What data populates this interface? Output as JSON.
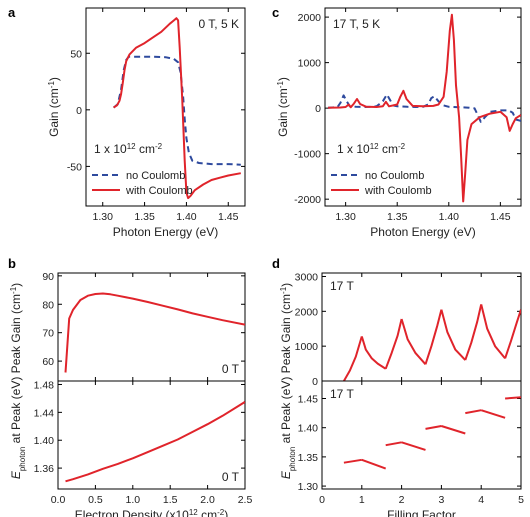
{
  "chart_data": [
    {
      "panel": "a",
      "type": "line",
      "xlabel": "Photon Energy (eV)",
      "ylabel": "Gain (cm",
      "ylabel_sup": "-1",
      "ylabel_close": ")",
      "xlim": [
        1.28,
        1.47
      ],
      "ylim": [
        -85,
        90
      ],
      "xticks": [
        "1.30",
        "1.35",
        "1.40",
        "1.45"
      ],
      "yticks": [
        "-50",
        "0",
        "50"
      ],
      "annotation": "0 T, 5 K",
      "density_main": "1 x 10",
      "density_sup": "12",
      "density_unit": " cm",
      "density_unit_sup": "-2",
      "legend": [
        "no  Coulomb",
        "with  Coulomb"
      ],
      "series": [
        {
          "name": "no Coulomb",
          "color": "#2e4a9e",
          "style": "dashed",
          "x": [
            1.313,
            1.318,
            1.322,
            1.325,
            1.328,
            1.331,
            1.336,
            1.345,
            1.36,
            1.375,
            1.385,
            1.39,
            1.393,
            1.396,
            1.398,
            1.4,
            1.403,
            1.407,
            1.415,
            1.43,
            1.45,
            1.465
          ],
          "y": [
            2,
            5,
            18,
            35,
            44,
            47,
            47,
            47,
            47,
            46.5,
            45,
            42,
            33,
            12,
            -8,
            -25,
            -38,
            -45,
            -47,
            -48,
            -48,
            -48.5
          ]
        },
        {
          "name": "with Coulomb",
          "color": "#e0242b",
          "style": "solid",
          "x": [
            1.313,
            1.317,
            1.32,
            1.322,
            1.324,
            1.326,
            1.328,
            1.332,
            1.34,
            1.35,
            1.36,
            1.37,
            1.38,
            1.385,
            1.388,
            1.39,
            1.392,
            1.395,
            1.398,
            1.4,
            1.402,
            1.405,
            1.41,
            1.42,
            1.43,
            1.44,
            1.45,
            1.465
          ],
          "y": [
            2,
            4,
            8,
            14,
            24,
            35,
            43,
            49,
            55,
            59,
            64,
            69,
            76,
            79,
            81,
            79,
            55,
            10,
            -45,
            -73,
            -78,
            -76,
            -71,
            -66,
            -62,
            -60,
            -58,
            -56
          ]
        }
      ]
    },
    {
      "panel": "c",
      "type": "line",
      "xlabel": "Photon Energy (eV)",
      "ylabel": "Gain (cm",
      "ylabel_sup": "-1",
      "ylabel_close": ")",
      "xlim": [
        1.28,
        1.47
      ],
      "ylim": [
        -2150,
        2200
      ],
      "xticks": [
        "1.30",
        "1.35",
        "1.40",
        "1.45"
      ],
      "yticks": [
        "-2000",
        "-1000",
        "0",
        "1000",
        "2000"
      ],
      "annotation": "17 T, 5 K",
      "density_main": "1 x 10",
      "density_sup": "12",
      "density_unit": " cm",
      "density_unit_sup": "-2",
      "legend": [
        "no  Coulomb",
        "with  Coulomb"
      ],
      "series": [
        {
          "name": "no Coulomb",
          "color": "#2e4a9e",
          "style": "dashed",
          "x": [
            1.283,
            1.292,
            1.295,
            1.298,
            1.301,
            1.304,
            1.31,
            1.318,
            1.324,
            1.33,
            1.336,
            1.34,
            1.343,
            1.346,
            1.35,
            1.36,
            1.368,
            1.375,
            1.38,
            1.383,
            1.386,
            1.39,
            1.395,
            1.4,
            1.41,
            1.42,
            1.425,
            1.428,
            1.431,
            1.435,
            1.44,
            1.45,
            1.458,
            1.462,
            1.465,
            1.47
          ],
          "y": [
            10,
            20,
            120,
            280,
            150,
            40,
            30,
            25,
            30,
            40,
            150,
            300,
            180,
            60,
            40,
            30,
            25,
            30,
            80,
            220,
            260,
            150,
            60,
            30,
            20,
            10,
            -5,
            -150,
            -300,
            -200,
            -80,
            -50,
            -50,
            -100,
            -250,
            -280
          ]
        },
        {
          "name": "with Coulomb",
          "color": "#e0242b",
          "style": "solid",
          "x": [
            1.283,
            1.295,
            1.3,
            1.303,
            1.305,
            1.308,
            1.311,
            1.314,
            1.32,
            1.33,
            1.336,
            1.339,
            1.342,
            1.35,
            1.353,
            1.356,
            1.359,
            1.365,
            1.375,
            1.385,
            1.39,
            1.395,
            1.398,
            1.401,
            1.403,
            1.405,
            1.407,
            1.41,
            1.412,
            1.414,
            1.416,
            1.418,
            1.422,
            1.43,
            1.44,
            1.45,
            1.456,
            1.459,
            1.462,
            1.465,
            1.47
          ],
          "y": [
            10,
            15,
            25,
            80,
            20,
            100,
            200,
            90,
            30,
            25,
            40,
            140,
            40,
            80,
            250,
            380,
            200,
            50,
            40,
            50,
            80,
            250,
            800,
            1700,
            2050,
            1500,
            500,
            -200,
            -1100,
            -2050,
            -1400,
            -700,
            -350,
            -200,
            -120,
            -80,
            -200,
            -500,
            -350,
            -220,
            -150
          ]
        }
      ]
    },
    {
      "panel": "b-top",
      "type": "line",
      "ylabel": "Peak Gain (cm",
      "ylabel_sup": "-1",
      "ylabel_close": ")",
      "xlim": [
        0,
        2.5
      ],
      "ylim": [
        53,
        91
      ],
      "yticks": [
        "60",
        "70",
        "80",
        "90"
      ],
      "annotation": "0 T",
      "series": [
        {
          "color": "#e0242b",
          "x": [
            0.1,
            0.15,
            0.2,
            0.3,
            0.4,
            0.5,
            0.6,
            0.7,
            0.8,
            1.0,
            1.2,
            1.4,
            1.6,
            1.8,
            2.0,
            2.2,
            2.5
          ],
          "y": [
            56,
            75,
            78,
            81.5,
            83,
            83.6,
            83.8,
            83.5,
            83,
            82,
            80.8,
            79.5,
            78.2,
            76.8,
            75.6,
            74.4,
            72.8
          ]
        }
      ]
    },
    {
      "panel": "b-bottom",
      "type": "line",
      "xlabel": "Electron Density (x10",
      "xlabel_sup": "12",
      "xlabel_unit": " cm",
      "xlabel_unit_sup": "-2",
      "xlabel_close": ")",
      "ylabel": "at Peak (eV)",
      "ylabel_main": "E",
      "ylabel_sub": "photon",
      "xlim": [
        0,
        2.5
      ],
      "ylim": [
        1.33,
        1.485
      ],
      "xticks": [
        "0.0",
        "0.5",
        "1.0",
        "1.5",
        "2.0",
        "2.5"
      ],
      "yticks": [
        "1.36",
        "1.40",
        "1.44",
        "1.48"
      ],
      "annotation": "0 T",
      "series": [
        {
          "color": "#e0242b",
          "x": [
            0.1,
            0.2,
            0.4,
            0.6,
            0.8,
            1.0,
            1.2,
            1.4,
            1.6,
            1.8,
            2.0,
            2.2,
            2.5
          ],
          "y": [
            1.341,
            1.344,
            1.351,
            1.359,
            1.366,
            1.374,
            1.383,
            1.392,
            1.401,
            1.412,
            1.423,
            1.435,
            1.455
          ]
        }
      ]
    },
    {
      "panel": "d-top",
      "type": "line",
      "ylabel": "Peak Gain (cm",
      "ylabel_sup": "-1",
      "ylabel_close": ")",
      "xlim": [
        0,
        5
      ],
      "ylim": [
        0,
        3100
      ],
      "yticks": [
        "0",
        "1000",
        "2000",
        "3000"
      ],
      "annotation": "17 T",
      "series": [
        {
          "color": "#e0242b",
          "segments": [
            {
              "x": [
                0.55,
                0.7,
                0.85,
                1.0
              ],
              "y": [
                0,
                300,
                700,
                1280
              ]
            },
            {
              "x": [
                1.0,
                1.1,
                1.25,
                1.4,
                1.6
              ],
              "y": [
                1280,
                900,
                650,
                500,
                350
              ]
            },
            {
              "x": [
                1.6,
                1.75,
                1.9,
                2.0
              ],
              "y": [
                350,
                800,
                1300,
                1780
              ]
            },
            {
              "x": [
                2.0,
                2.15,
                2.35,
                2.6
              ],
              "y": [
                1780,
                1200,
                800,
                480
              ]
            },
            {
              "x": [
                2.6,
                2.75,
                2.9,
                3.0
              ],
              "y": [
                480,
                1000,
                1600,
                2050
              ]
            },
            {
              "x": [
                3.0,
                3.15,
                3.35,
                3.6
              ],
              "y": [
                2050,
                1400,
                900,
                600
              ]
            },
            {
              "x": [
                3.6,
                3.75,
                3.9,
                4.0
              ],
              "y": [
                600,
                1100,
                1700,
                2200
              ]
            },
            {
              "x": [
                4.0,
                4.15,
                4.35,
                4.6
              ],
              "y": [
                2200,
                1500,
                1000,
                650
              ]
            },
            {
              "x": [
                4.6,
                4.75,
                4.9,
                5.0
              ],
              "y": [
                650,
                1150,
                1700,
                2050
              ]
            }
          ]
        }
      ]
    },
    {
      "panel": "d-bottom",
      "type": "line",
      "xlabel": "Filling Factor",
      "ylabel": "at Peak (eV)",
      "ylabel_main": "E",
      "ylabel_sub": "photon",
      "xlim": [
        0,
        5
      ],
      "ylim": [
        1.295,
        1.48
      ],
      "xticks": [
        "0",
        "1",
        "2",
        "3",
        "4",
        "5"
      ],
      "yticks": [
        "1.30",
        "1.35",
        "1.40",
        "1.45"
      ],
      "annotation": "17 T",
      "series": [
        {
          "color": "#e0242b",
          "segments": [
            {
              "x": [
                0.55,
                1.0
              ],
              "y": [
                1.34,
                1.345
              ]
            },
            {
              "x": [
                1.0,
                1.6
              ],
              "y": [
                1.345,
                1.33
              ]
            },
            {
              "x": [
                1.6,
                2.0
              ],
              "y": [
                1.37,
                1.375
              ]
            },
            {
              "x": [
                2.0,
                2.6
              ],
              "y": [
                1.375,
                1.362
              ]
            },
            {
              "x": [
                2.6,
                3.0
              ],
              "y": [
                1.398,
                1.403
              ]
            },
            {
              "x": [
                3.0,
                3.6
              ],
              "y": [
                1.403,
                1.39
              ]
            },
            {
              "x": [
                3.6,
                4.0
              ],
              "y": [
                1.425,
                1.43
              ]
            },
            {
              "x": [
                4.0,
                4.6
              ],
              "y": [
                1.43,
                1.417
              ]
            },
            {
              "x": [
                4.6,
                5.0
              ],
              "y": [
                1.45,
                1.452
              ]
            }
          ]
        }
      ]
    }
  ],
  "panel_letters": [
    "a",
    "b",
    "c",
    "d"
  ]
}
